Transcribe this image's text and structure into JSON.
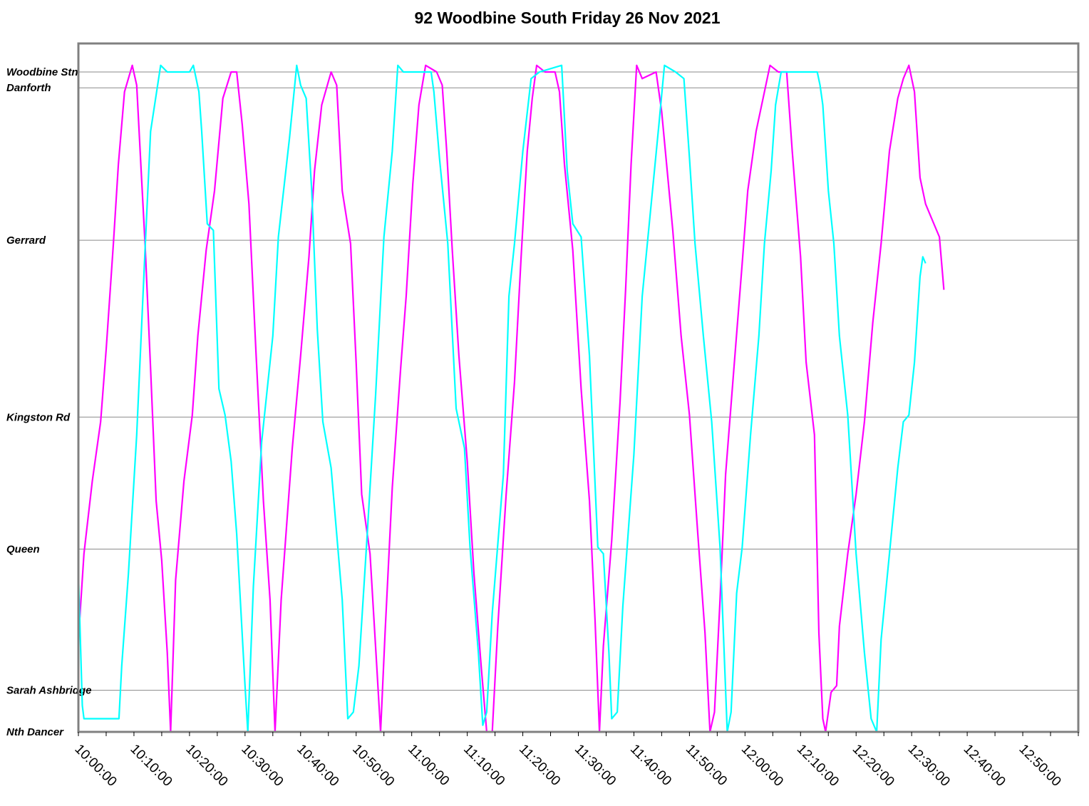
{
  "chart_data": {
    "type": "line",
    "title": "92 Woodbine South Friday 26 Nov 2021",
    "xlabel": "",
    "ylabel": "",
    "x_range": [
      "10:00:00",
      "13:00:00"
    ],
    "x_tick_labels": [
      "10:00:00",
      "10:10:00",
      "10:20:00",
      "10:30:00",
      "10:40:00",
      "10:50:00",
      "11:00:00",
      "11:10:00",
      "11:20:00",
      "11:30:00",
      "11:40:00",
      "11:50:00",
      "12:00:00",
      "12:10:00",
      "12:20:00",
      "12:30:00",
      "12:40:00",
      "12:50:00"
    ],
    "y_stops": [
      {
        "name": "Woodbine Stn",
        "pos": 1.0
      },
      {
        "name": "Danforth",
        "pos": 0.976
      },
      {
        "name": "Gerrard",
        "pos": 0.745
      },
      {
        "name": "Kingston Rd",
        "pos": 0.477
      },
      {
        "name": "Queen",
        "pos": 0.277
      },
      {
        "name": "Sarah Ashbridge",
        "pos": 0.063
      },
      {
        "name": "Nth Dancer",
        "pos": 0.0
      }
    ],
    "grid": true,
    "series": [
      {
        "color": "#ff00ff",
        "points": [
          [
            0,
            0.14
          ],
          [
            1,
            0.27
          ],
          [
            2.5,
            0.38
          ],
          [
            4,
            0.47
          ],
          [
            5,
            0.58
          ],
          [
            6.3,
            0.74
          ],
          [
            7.2,
            0.86
          ],
          [
            8.3,
            0.97
          ],
          [
            9.7,
            1.01
          ],
          [
            10.5,
            0.98
          ],
          [
            11.3,
            0.85
          ],
          [
            12,
            0.74
          ],
          [
            13,
            0.55
          ],
          [
            14,
            0.35
          ],
          [
            15,
            0.26
          ],
          [
            16,
            0.12
          ],
          [
            16.6,
            0.0
          ],
          [
            17.5,
            0.23
          ],
          [
            19,
            0.38
          ],
          [
            20.5,
            0.48
          ],
          [
            21.5,
            0.6
          ],
          [
            23,
            0.73
          ],
          [
            24.5,
            0.82
          ],
          [
            26,
            0.96
          ],
          [
            27.5,
            1.0
          ],
          [
            28.5,
            1.0
          ],
          [
            29.5,
            0.92
          ],
          [
            30.7,
            0.8
          ],
          [
            32,
            0.57
          ],
          [
            33.3,
            0.35
          ],
          [
            34.5,
            0.2
          ],
          [
            35.4,
            0.0
          ],
          [
            36.5,
            0.2
          ],
          [
            38.5,
            0.43
          ],
          [
            40,
            0.57
          ],
          [
            41.5,
            0.72
          ],
          [
            42.5,
            0.85
          ],
          [
            43.8,
            0.95
          ],
          [
            45.5,
            1.0
          ],
          [
            46.5,
            0.98
          ],
          [
            47.5,
            0.82
          ],
          [
            49,
            0.74
          ],
          [
            50,
            0.56
          ],
          [
            51,
            0.36
          ],
          [
            52.5,
            0.27
          ],
          [
            53.7,
            0.1
          ],
          [
            54.4,
            0.0
          ],
          [
            55.2,
            0.15
          ],
          [
            56.5,
            0.37
          ],
          [
            58,
            0.55
          ],
          [
            59,
            0.66
          ],
          [
            60.2,
            0.83
          ],
          [
            61.3,
            0.95
          ],
          [
            62.5,
            1.01
          ],
          [
            64.5,
            1.0
          ],
          [
            65.5,
            0.98
          ],
          [
            66.3,
            0.88
          ],
          [
            67.3,
            0.73
          ],
          [
            68.5,
            0.57
          ],
          [
            70,
            0.41
          ],
          [
            71.2,
            0.24
          ],
          [
            72.5,
            0.1
          ],
          [
            73.5,
            0.0
          ],
          [
            74.5,
            0.0
          ],
          [
            75.5,
            0.16
          ],
          [
            77,
            0.36
          ],
          [
            78.5,
            0.53
          ],
          [
            79.7,
            0.72
          ],
          [
            80.8,
            0.88
          ],
          [
            81.7,
            0.96
          ],
          [
            82.5,
            1.01
          ],
          [
            84,
            1.0
          ],
          [
            85.8,
            1.0
          ],
          [
            86.6,
            0.97
          ],
          [
            87.5,
            0.86
          ],
          [
            89,
            0.73
          ],
          [
            90.5,
            0.52
          ],
          [
            92,
            0.35
          ],
          [
            93,
            0.17
          ],
          [
            93.8,
            0.0
          ],
          [
            94.5,
            0.13
          ],
          [
            96,
            0.29
          ],
          [
            97.5,
            0.5
          ],
          [
            98.5,
            0.67
          ],
          [
            99.5,
            0.86
          ],
          [
            100.5,
            1.01
          ],
          [
            101.5,
            0.99
          ],
          [
            104,
            1.0
          ],
          [
            105,
            0.94
          ],
          [
            106,
            0.85
          ],
          [
            107,
            0.76
          ],
          [
            108.5,
            0.6
          ],
          [
            110,
            0.48
          ],
          [
            111.5,
            0.3
          ],
          [
            112.8,
            0.15
          ],
          [
            113.7,
            0.0
          ],
          [
            114.5,
            0.03
          ],
          [
            115.5,
            0.2
          ],
          [
            116.5,
            0.39
          ],
          [
            118,
            0.55
          ],
          [
            119.5,
            0.71
          ],
          [
            120.5,
            0.82
          ],
          [
            122,
            0.91
          ],
          [
            123.5,
            0.97
          ],
          [
            124.5,
            1.01
          ],
          [
            126,
            1.0
          ],
          [
            127.5,
            1.0
          ],
          [
            128.5,
            0.88
          ],
          [
            130,
            0.72
          ],
          [
            131,
            0.56
          ],
          [
            132.5,
            0.45
          ],
          [
            133.3,
            0.15
          ],
          [
            134,
            0.02
          ],
          [
            134.5,
            0.0
          ],
          [
            135.5,
            0.06
          ],
          [
            136.5,
            0.07
          ],
          [
            137,
            0.16
          ],
          [
            138.5,
            0.27
          ],
          [
            140,
            0.36
          ],
          [
            141.5,
            0.47
          ],
          [
            143,
            0.62
          ],
          [
            144.5,
            0.74
          ],
          [
            146,
            0.88
          ],
          [
            147.5,
            0.96
          ],
          [
            148.5,
            0.99
          ],
          [
            149.5,
            1.01
          ],
          [
            150.5,
            0.97
          ],
          [
            151.5,
            0.84
          ],
          [
            152.5,
            0.8
          ],
          [
            153.5,
            0.78
          ],
          [
            155,
            0.75
          ],
          [
            155.8,
            0.67
          ]
        ]
      },
      {
        "color": "#00ffff",
        "points": [
          [
            0,
            0.24
          ],
          [
            0.7,
            0.04
          ],
          [
            1,
            0.02
          ],
          [
            7.3,
            0.02
          ],
          [
            7.8,
            0.1
          ],
          [
            9,
            0.24
          ],
          [
            10.5,
            0.45
          ],
          [
            12,
            0.73
          ],
          [
            13,
            0.91
          ],
          [
            14.8,
            1.01
          ],
          [
            16,
            1.0
          ],
          [
            20,
            1.0
          ],
          [
            20.7,
            1.01
          ],
          [
            21.7,
            0.97
          ],
          [
            22.2,
            0.91
          ],
          [
            23.2,
            0.77
          ],
          [
            24.3,
            0.76
          ],
          [
            25.3,
            0.52
          ],
          [
            26.4,
            0.48
          ],
          [
            27.5,
            0.41
          ],
          [
            28.5,
            0.3
          ],
          [
            30,
            0.07
          ],
          [
            30.5,
            0.0
          ],
          [
            31.5,
            0.22
          ],
          [
            33,
            0.44
          ],
          [
            35,
            0.6
          ],
          [
            36,
            0.75
          ],
          [
            38,
            0.9
          ],
          [
            39.3,
            1.01
          ],
          [
            40,
            0.98
          ],
          [
            41,
            0.96
          ],
          [
            42,
            0.82
          ],
          [
            43,
            0.61
          ],
          [
            44,
            0.47
          ],
          [
            45.5,
            0.4
          ],
          [
            47.5,
            0.2
          ],
          [
            48.5,
            0.02
          ],
          [
            49.5,
            0.03
          ],
          [
            50.5,
            0.1
          ],
          [
            52,
            0.3
          ],
          [
            53.5,
            0.51
          ],
          [
            55,
            0.75
          ],
          [
            56.5,
            0.88
          ],
          [
            57.5,
            1.01
          ],
          [
            58.5,
            1.0
          ],
          [
            63.5,
            1.0
          ],
          [
            64,
            0.97
          ],
          [
            65,
            0.87
          ],
          [
            66.5,
            0.74
          ],
          [
            68,
            0.49
          ],
          [
            69.5,
            0.43
          ],
          [
            70.5,
            0.28
          ],
          [
            72,
            0.12
          ],
          [
            72.8,
            0.01
          ],
          [
            73.5,
            0.03
          ],
          [
            74.5,
            0.18
          ],
          [
            76.5,
            0.39
          ],
          [
            77.5,
            0.66
          ],
          [
            78.5,
            0.74
          ],
          [
            80,
            0.88
          ],
          [
            81.5,
            0.99
          ],
          [
            83,
            1.0
          ],
          [
            87,
            1.01
          ],
          [
            88,
            0.85
          ],
          [
            89,
            0.77
          ],
          [
            90.5,
            0.75
          ],
          [
            92,
            0.57
          ],
          [
            93.5,
            0.28
          ],
          [
            94.5,
            0.27
          ],
          [
            95.5,
            0.12
          ],
          [
            96,
            0.02
          ],
          [
            97,
            0.03
          ],
          [
            98,
            0.19
          ],
          [
            100,
            0.42
          ],
          [
            101.5,
            0.66
          ],
          [
            103,
            0.79
          ],
          [
            104.5,
            0.92
          ],
          [
            105.5,
            1.01
          ],
          [
            107.5,
            1.0
          ],
          [
            109,
            0.99
          ],
          [
            110,
            0.87
          ],
          [
            111,
            0.74
          ],
          [
            112.5,
            0.6
          ],
          [
            114,
            0.47
          ],
          [
            115.5,
            0.28
          ],
          [
            116.8,
            0.0
          ],
          [
            117.5,
            0.03
          ],
          [
            118.5,
            0.21
          ],
          [
            119.5,
            0.28
          ],
          [
            121,
            0.45
          ],
          [
            122.5,
            0.6
          ],
          [
            123.5,
            0.74
          ],
          [
            124.7,
            0.85
          ],
          [
            125.5,
            0.95
          ],
          [
            126.5,
            1.0
          ],
          [
            133,
            1.0
          ],
          [
            133.5,
            0.98
          ],
          [
            134,
            0.95
          ],
          [
            135,
            0.82
          ],
          [
            136,
            0.74
          ],
          [
            137,
            0.6
          ],
          [
            138.5,
            0.48
          ],
          [
            140,
            0.27
          ],
          [
            141.5,
            0.12
          ],
          [
            142.7,
            0.02
          ],
          [
            143.7,
            0.0
          ],
          [
            144.5,
            0.14
          ],
          [
            146,
            0.27
          ],
          [
            147.5,
            0.4
          ],
          [
            148.5,
            0.47
          ],
          [
            149.5,
            0.48
          ],
          [
            150.5,
            0.56
          ],
          [
            151.5,
            0.69
          ],
          [
            152,
            0.72
          ],
          [
            152.5,
            0.71
          ]
        ]
      }
    ]
  }
}
